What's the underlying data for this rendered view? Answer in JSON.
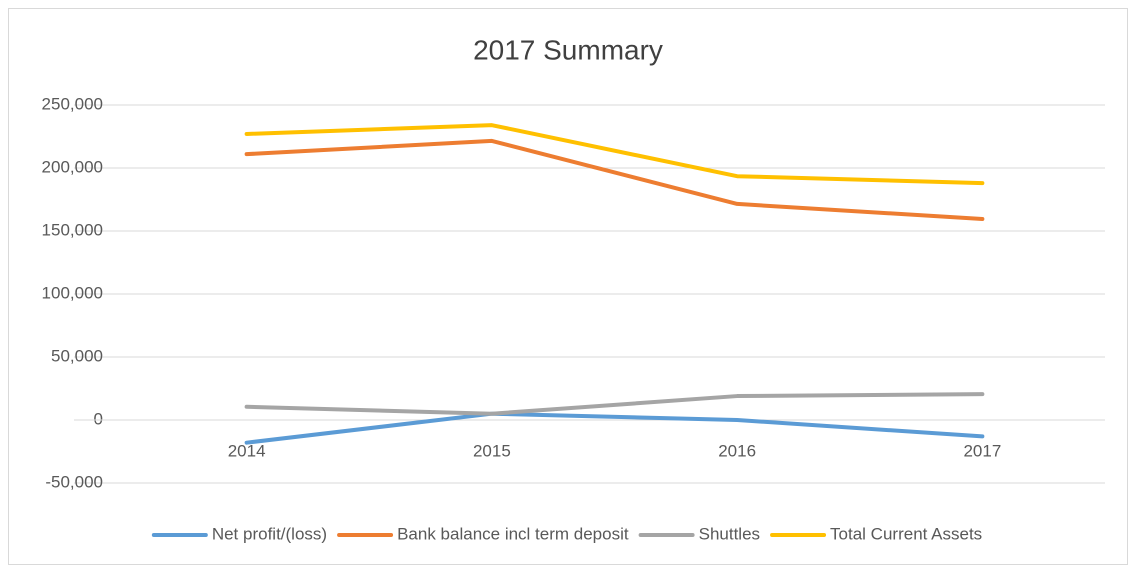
{
  "chart_data": {
    "type": "line",
    "title": "2017 Summary",
    "categories": [
      "2014",
      "2015",
      "2016",
      "2017"
    ],
    "series": [
      {
        "name": "Net profit/(loss)",
        "color": "#5b9bd5",
        "values": [
          -18000,
          5000,
          0,
          -13000
        ]
      },
      {
        "name": "Bank balance incl term deposit",
        "color": "#ed7d31",
        "values": [
          211000,
          221500,
          171500,
          159500
        ]
      },
      {
        "name": "Shuttles",
        "color": "#a5a5a5",
        "values": [
          10500,
          5000,
          19000,
          20500
        ]
      },
      {
        "name": "Total Current Assets",
        "color": "#ffc000",
        "values": [
          227000,
          234000,
          193500,
          188000
        ]
      }
    ],
    "ylim": [
      -50000,
      250000
    ],
    "yticks": [
      {
        "value": -50000,
        "label": "-50,000"
      },
      0,
      {
        "value": 50000,
        "label": "50,000"
      },
      {
        "value": 100000,
        "label": "100,000"
      },
      {
        "value": 150000,
        "label": "150,000"
      },
      {
        "value": 200000,
        "label": "200,000"
      },
      {
        "value": 250000,
        "label": "250,000"
      }
    ],
    "grid": true,
    "legend": "bottom"
  }
}
